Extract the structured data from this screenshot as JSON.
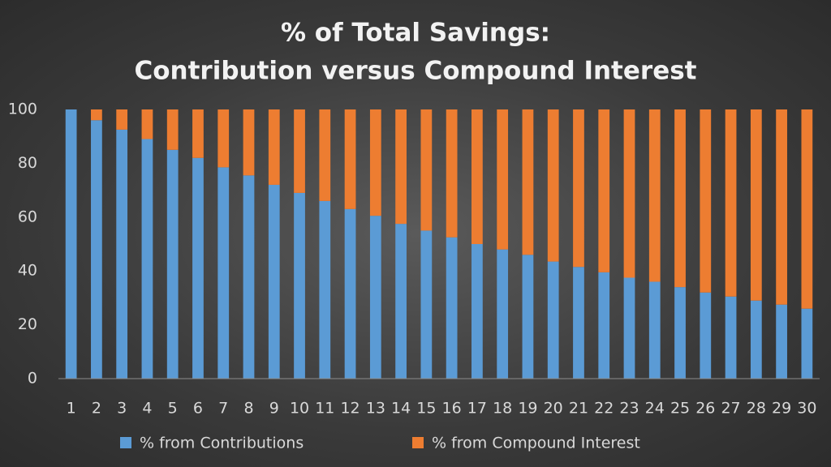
{
  "chart_data": {
    "type": "stacked-bar",
    "title": [
      "% of Total Savings:",
      "Contribution versus Compound Interest"
    ],
    "categories": [
      "1",
      "2",
      "3",
      "4",
      "5",
      "6",
      "7",
      "8",
      "9",
      "10",
      "11",
      "12",
      "13",
      "14",
      "15",
      "16",
      "17",
      "18",
      "19",
      "20",
      "21",
      "22",
      "23",
      "24",
      "25",
      "26",
      "27",
      "28",
      "29",
      "30"
    ],
    "series": [
      {
        "name": "% from Contributions",
        "color": "#5b9bd5",
        "values": [
          100,
          96,
          92.5,
          89,
          85,
          82,
          78.5,
          75.5,
          72,
          69,
          66,
          63,
          60.5,
          57.5,
          55,
          52.5,
          50,
          48,
          46,
          43.5,
          41.5,
          39.5,
          37.5,
          36,
          34,
          32,
          30.5,
          29,
          27.5,
          26
        ]
      },
      {
        "name": "% from Compound Interest",
        "color": "#ed7d31",
        "values": [
          0,
          4,
          7.5,
          11,
          15,
          18,
          21.5,
          24.5,
          28,
          31,
          34,
          37,
          39.5,
          42.5,
          45,
          47.5,
          50,
          52,
          54,
          56.5,
          58.5,
          60.5,
          62.5,
          64,
          66,
          68,
          69.5,
          71,
          72.5,
          74
        ]
      }
    ],
    "ylim": [
      0,
      100
    ],
    "yticks": [
      0,
      20,
      40,
      60,
      80,
      100
    ],
    "grid": false
  }
}
